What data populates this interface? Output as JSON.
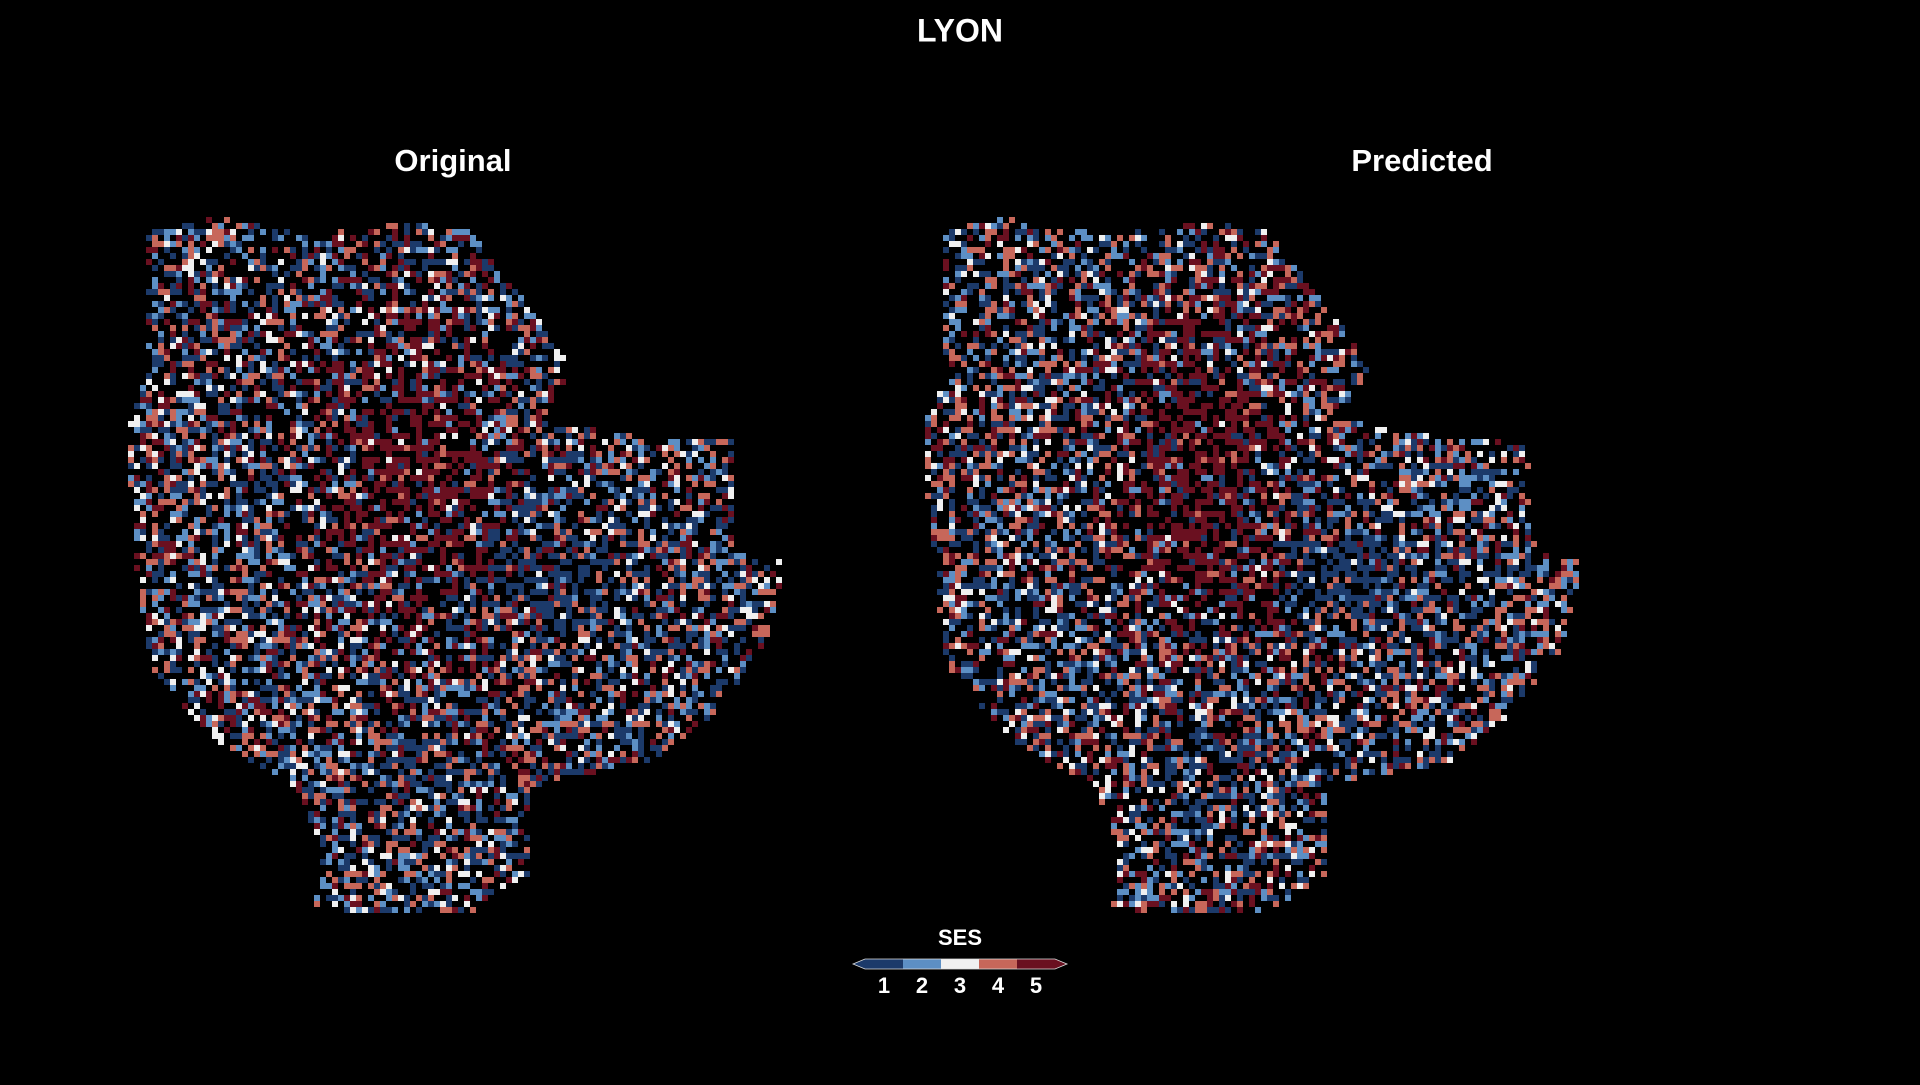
{
  "title": "LYON",
  "panels": [
    {
      "title": "Original"
    },
    {
      "title": "Predicted"
    }
  ],
  "legend": {
    "title": "SES",
    "ticks": [
      1,
      2,
      3,
      4,
      5
    ],
    "colors": [
      "#1c3a6a",
      "#5d8fc4",
      "#f0f0f0",
      "#c7675a",
      "#6a1020"
    ]
  }
}
